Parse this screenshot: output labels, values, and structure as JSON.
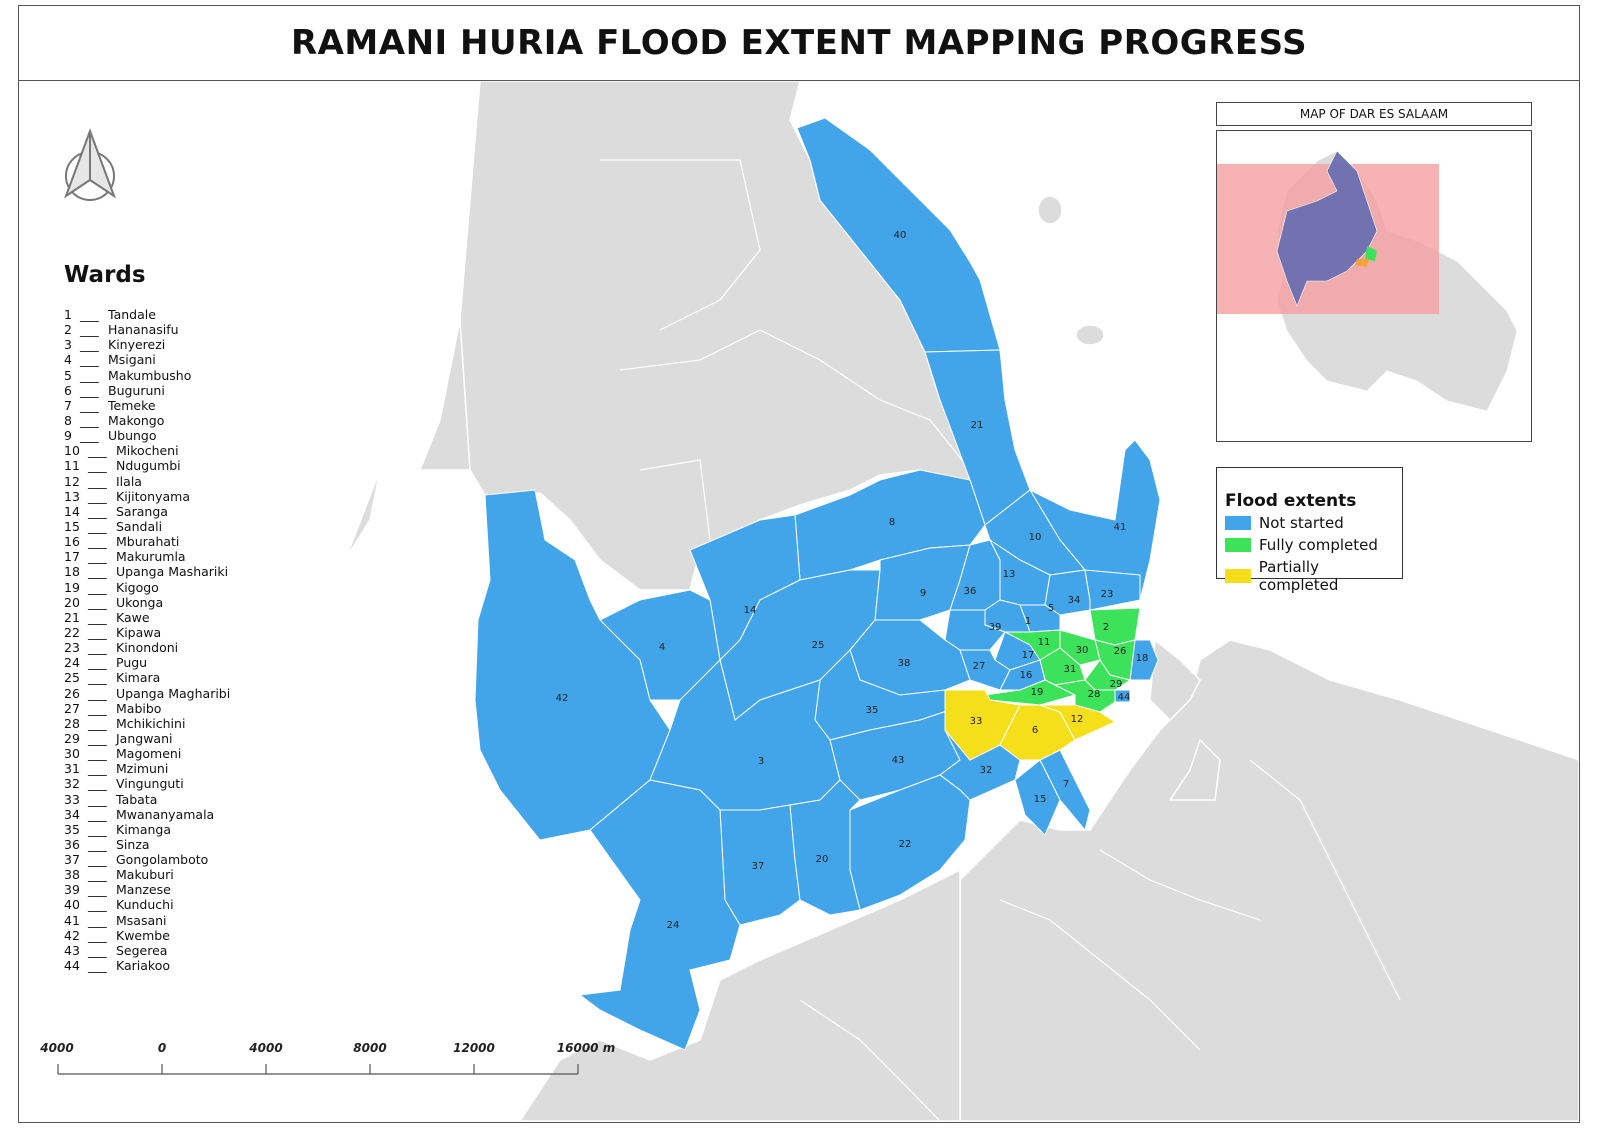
{
  "title": "RAMANI HURIA FLOOD EXTENT MAPPING PROGRESS",
  "colors": {
    "not_started": "#42a5ea",
    "fully_completed": "#3ce35a",
    "partially_completed": "#f5df1a",
    "background_land": "#dcdcdc",
    "inset_extent": "#f5a0a0"
  },
  "north_arrow": {
    "icon": "north-arrow-icon"
  },
  "wards_heading": "Wards",
  "wards": [
    {
      "n": "1",
      "name": "Tandale"
    },
    {
      "n": "2",
      "name": "Hananasifu"
    },
    {
      "n": "3",
      "name": "Kinyerezi"
    },
    {
      "n": "4",
      "name": "Msigani"
    },
    {
      "n": "5",
      "name": "Makumbusho"
    },
    {
      "n": "6",
      "name": "Buguruni"
    },
    {
      "n": "7",
      "name": "Temeke"
    },
    {
      "n": "8",
      "name": "Makongo"
    },
    {
      "n": "9",
      "name": "Ubungo"
    },
    {
      "n": "10",
      "name": "Mikocheni"
    },
    {
      "n": "11",
      "name": "Ndugumbi"
    },
    {
      "n": "12",
      "name": "Ilala"
    },
    {
      "n": "13",
      "name": "Kijitonyama"
    },
    {
      "n": "14",
      "name": "Saranga"
    },
    {
      "n": "15",
      "name": "Sandali"
    },
    {
      "n": "16",
      "name": "Mburahati"
    },
    {
      "n": "17",
      "name": "Makurumla"
    },
    {
      "n": "18",
      "name": "Upanga Mashariki"
    },
    {
      "n": "19",
      "name": "Kigogo"
    },
    {
      "n": "20",
      "name": "Ukonga"
    },
    {
      "n": "21",
      "name": "Kawe"
    },
    {
      "n": "22",
      "name": "Kipawa"
    },
    {
      "n": "23",
      "name": "Kinondoni"
    },
    {
      "n": "24",
      "name": "Pugu"
    },
    {
      "n": "25",
      "name": "Kimara"
    },
    {
      "n": "26",
      "name": "Upanga Magharibi"
    },
    {
      "n": "27",
      "name": "Mabibo"
    },
    {
      "n": "28",
      "name": "Mchikichini"
    },
    {
      "n": "29",
      "name": "Jangwani"
    },
    {
      "n": "30",
      "name": "Magomeni"
    },
    {
      "n": "31",
      "name": "Mzimuni"
    },
    {
      "n": "32",
      "name": "Vingunguti"
    },
    {
      "n": "33",
      "name": "Tabata"
    },
    {
      "n": "34",
      "name": "Mwananyamala"
    },
    {
      "n": "35",
      "name": "Kimanga"
    },
    {
      "n": "36",
      "name": "Sinza"
    },
    {
      "n": "37",
      "name": "Gongolamboto"
    },
    {
      "n": "38",
      "name": "Makuburi"
    },
    {
      "n": "39",
      "name": "Manzese"
    },
    {
      "n": "40",
      "name": "Kunduchi"
    },
    {
      "n": "41",
      "name": "Msasani"
    },
    {
      "n": "42",
      "name": "Kwembe"
    },
    {
      "n": "43",
      "name": "Segerea"
    },
    {
      "n": "44",
      "name": "Kariakoo"
    }
  ],
  "map_labels": [
    "40",
    "21",
    "10",
    "41",
    "8",
    "23",
    "13",
    "36",
    "9",
    "34",
    "5",
    "14",
    "2",
    "39",
    "1",
    "26",
    "4",
    "11",
    "30",
    "18",
    "17",
    "25",
    "31",
    "38",
    "27",
    "16",
    "29",
    "42",
    "19",
    "28",
    "44",
    "35",
    "33",
    "6",
    "12",
    "3",
    "43",
    "32",
    "7",
    "15",
    "22",
    "37",
    "20",
    "24"
  ],
  "ward_status": {
    "not_started": [
      "40",
      "21",
      "10",
      "41",
      "8",
      "23",
      "13",
      "36",
      "9",
      "34",
      "5",
      "14",
      "39",
      "1",
      "4",
      "18",
      "17",
      "25",
      "38",
      "27",
      "16",
      "42",
      "44",
      "35",
      "3",
      "43",
      "32",
      "7",
      "15",
      "22",
      "37",
      "20",
      "24"
    ],
    "fully_completed": [
      "2",
      "26",
      "11",
      "30",
      "31",
      "29",
      "19",
      "28"
    ],
    "partially_completed": [
      "33",
      "6",
      "12"
    ]
  },
  "inset": {
    "title": "MAP OF DAR ES SALAAM"
  },
  "legend": {
    "title": "Flood extents",
    "items": [
      {
        "label": "Not started",
        "status": "not_started"
      },
      {
        "label": "Fully completed",
        "status": "fully_completed"
      },
      {
        "label": "Partially completed",
        "status": "partially_completed"
      }
    ]
  },
  "scale_bar": {
    "labels": [
      "4000",
      "0",
      "4000",
      "8000",
      "12000",
      "16000 m"
    ]
  }
}
